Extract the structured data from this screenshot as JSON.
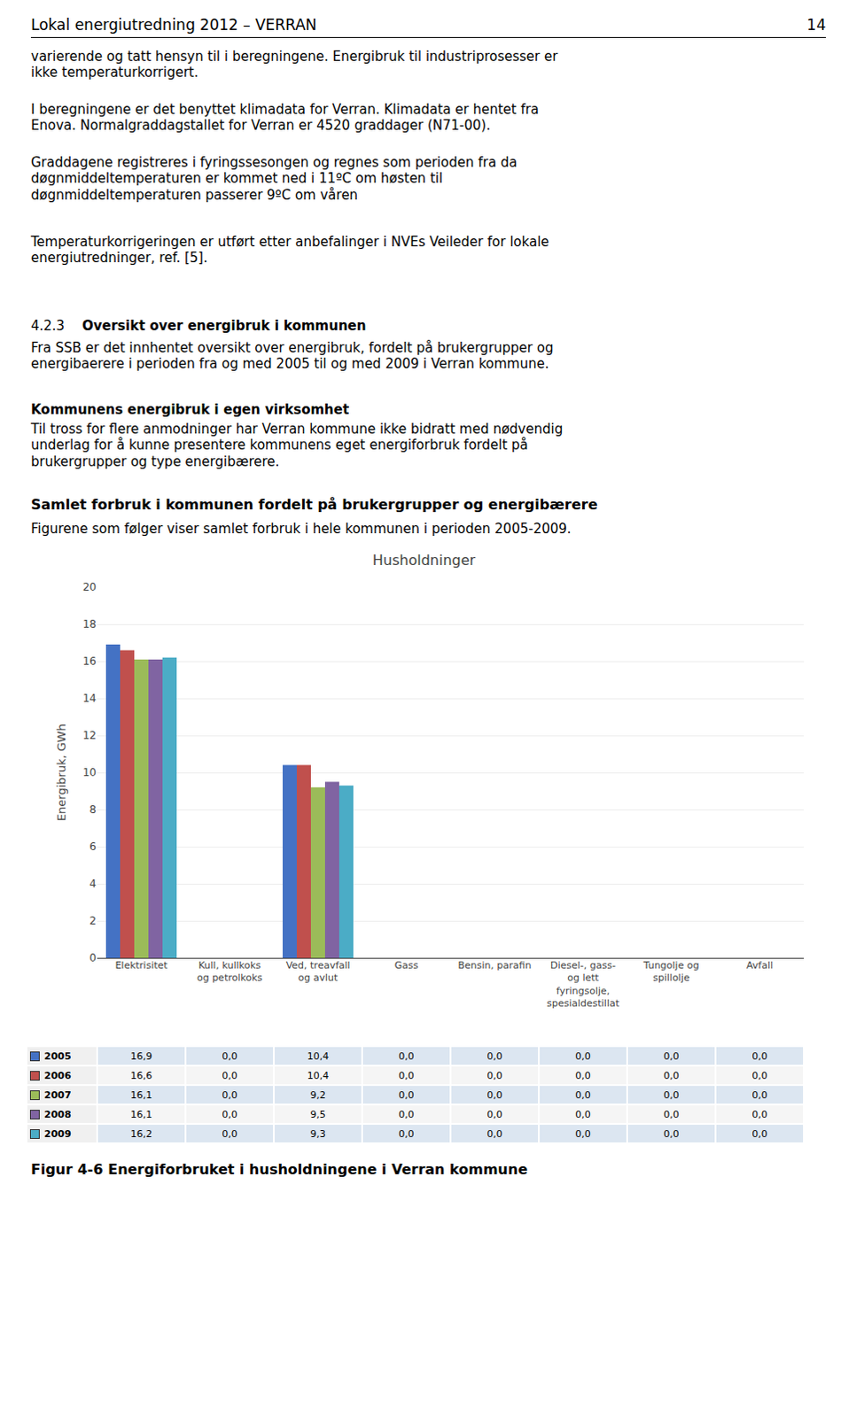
{
  "page_title": "Lokal energiutredning 2012 – VERRAN",
  "page_number": "14",
  "para1": "varierende og tatt hensyn til i beregningene. Energibruk til industriprosesser er\nikke temperaturkorrigert.",
  "para2": "I beregningene er det benyttet klimadata for Verran. Klimadata er hentet fra\nEnova. Normalgraddagstallet for Verran er 4520 graddager (N71-00).",
  "para3": "Graddagene registreres i fyringssesongen og regnes som perioden fra da\ndøgnmiddeltemperaturen er kommet ned i 11ºC om høsten til\ndøgnmiddeltemperaturen passerer 9ºC om våren",
  "para4": "Temperaturkorrigeringen er utført etter anbefalinger i NVEs Veileder for lokale\nenergiutredninger, ref. [5].",
  "section_num": "4.2.3",
  "section_title_bold": "Oversikt over energibruk i kommunen",
  "section_para": "Fra SSB er det innhentet oversikt over energibruk, fordelt på brukergrupper og\nenergibaerere i perioden fra og med 2005 til og med 2009 i Verran kommune.",
  "bold_heading": "Kommunens energibruk i egen virksomhet",
  "bold_para": "Til tross for flere anmodninger har Verran kommune ikke bidratt med nødvendig\nunderlag for å kunne presentere kommunens eget energiforbruk fordelt på\nbrukergrupper og type energibærere.",
  "bold_heading2": "Samlet forbruk i kommunen fordelt på brukergrupper og energibærere",
  "bold_para2": "Figurene som følger viser samlet forbruk i hele kommunen i perioden 2005-2009.",
  "fig_caption": "Figur 4-6 Energiforbruket i husholdningene i Verran kommune",
  "chart_data": {
    "type": "bar",
    "title": "Husholdninger",
    "ylabel": "Energibruk, GWh",
    "categories": [
      "Elektrisitet",
      "Kull, kullkoks\nog petrolkoks",
      "Ved, treavfall\nog avlut",
      "Gass",
      "Bensin, parafin",
      "Diesel-, gass-\nog lett\nfyringsolje,\nspesialdestillat",
      "Tungolje og\nspillolje",
      "Avfall"
    ],
    "series": [
      {
        "name": "2005",
        "color": "#4472C4",
        "values": [
          16.9,
          0.0,
          10.4,
          0.0,
          0.0,
          0.0,
          0.0,
          0.0
        ],
        "value_labels": [
          "16,9",
          "0,0",
          "10,4",
          "0,0",
          "0,0",
          "0,0",
          "0,0",
          "0,0"
        ]
      },
      {
        "name": "2006",
        "color": "#C0504D",
        "values": [
          16.6,
          0.0,
          10.4,
          0.0,
          0.0,
          0.0,
          0.0,
          0.0
        ],
        "value_labels": [
          "16,6",
          "0,0",
          "10,4",
          "0,0",
          "0,0",
          "0,0",
          "0,0",
          "0,0"
        ]
      },
      {
        "name": "2007",
        "color": "#9BBB59",
        "values": [
          16.1,
          0.0,
          9.2,
          0.0,
          0.0,
          0.0,
          0.0,
          0.0
        ],
        "value_labels": [
          "16,1",
          "0,0",
          "9,2",
          "0,0",
          "0,0",
          "0,0",
          "0,0",
          "0,0"
        ]
      },
      {
        "name": "2008",
        "color": "#8064A2",
        "values": [
          16.1,
          0.0,
          9.5,
          0.0,
          0.0,
          0.0,
          0.0,
          0.0
        ],
        "value_labels": [
          "16,1",
          "0,0",
          "9,5",
          "0,0",
          "0,0",
          "0,0",
          "0,0",
          "0,0"
        ]
      },
      {
        "name": "2009",
        "color": "#4BACC6",
        "values": [
          16.2,
          0.0,
          9.3,
          0.0,
          0.0,
          0.0,
          0.0,
          0.0
        ],
        "value_labels": [
          "16,2",
          "0,0",
          "9,3",
          "0,0",
          "0,0",
          "0,0",
          "0,0",
          "0,0"
        ]
      }
    ],
    "ylim": [
      0,
      20
    ],
    "yticks": [
      0,
      2,
      4,
      6,
      8,
      10,
      12,
      14,
      16,
      18,
      20
    ],
    "grid": true
  }
}
